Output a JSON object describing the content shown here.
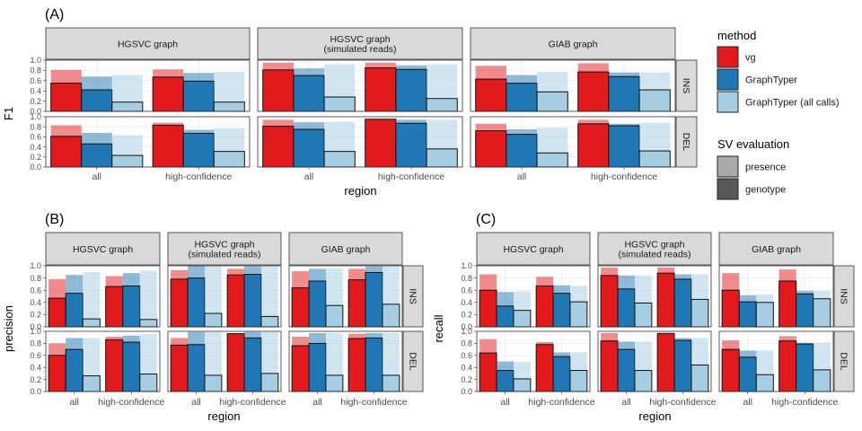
{
  "chart_data": [
    {
      "panel_label": "(A)",
      "type": "bar",
      "ylabel": "F1",
      "xlabel": "region",
      "ylim": [
        0,
        1
      ],
      "y_ticks": [
        "0.0",
        "0.2",
        "0.4",
        "0.6",
        "0.8",
        "1.0"
      ],
      "columns": [
        "HGSVC graph",
        "HGSVC graph\n(simulated reads)",
        "GIAB graph"
      ],
      "rows": [
        "INS",
        "DEL"
      ],
      "categories": [
        "all",
        "high-confidence"
      ],
      "series_names": [
        "vg",
        "GraphTyper",
        "GraphTyper (all calls)"
      ],
      "data": [
        [
          [
            [
              0.55,
              0.81
            ],
            [
              0.42,
              0.68
            ],
            [
              0.18,
              0.71
            ],
            [
              0.67,
              0.82
            ],
            [
              0.59,
              0.75
            ],
            [
              0.18,
              0.77
            ]
          ],
          [
            [
              0.81,
              0.95
            ],
            [
              0.7,
              0.84
            ],
            [
              0.28,
              0.92
            ],
            [
              0.85,
              0.95
            ],
            [
              0.82,
              0.9
            ],
            [
              0.25,
              0.92
            ]
          ],
          [
            [
              0.63,
              0.89
            ],
            [
              0.55,
              0.71
            ],
            [
              0.38,
              0.77
            ],
            [
              0.77,
              0.94
            ],
            [
              0.68,
              0.76
            ],
            [
              0.42,
              0.76
            ]
          ]
        ],
        [
          [
            [
              0.61,
              0.83
            ],
            [
              0.46,
              0.68
            ],
            [
              0.23,
              0.63
            ],
            [
              0.83,
              0.88
            ],
            [
              0.67,
              0.74
            ],
            [
              0.31,
              0.77
            ]
          ],
          [
            [
              0.81,
              0.94
            ],
            [
              0.75,
              0.89
            ],
            [
              0.31,
              0.9
            ],
            [
              0.95,
              0.96
            ],
            [
              0.87,
              0.94
            ],
            [
              0.36,
              0.94
            ]
          ],
          [
            [
              0.72,
              0.86
            ],
            [
              0.65,
              0.75
            ],
            [
              0.28,
              0.78
            ],
            [
              0.86,
              0.94
            ],
            [
              0.82,
              0.86
            ],
            [
              0.32,
              0.88
            ]
          ]
        ]
      ]
    },
    {
      "panel_label": "(B)",
      "type": "bar",
      "ylabel": "precision",
      "xlabel": "region",
      "ylim": [
        0,
        1
      ],
      "y_ticks": [
        "0.0",
        "0.2",
        "0.4",
        "0.6",
        "0.8",
        "1.0"
      ],
      "columns": [
        "HGSVC graph",
        "HGSVC graph\n(simulated reads)",
        "GIAB graph"
      ],
      "rows": [
        "INS",
        "DEL"
      ],
      "categories": [
        "all",
        "high-confidence"
      ],
      "series_names": [
        "vg",
        "GraphTyper",
        "GraphTyper (all calls)"
      ],
      "data": [
        [
          [
            [
              0.47,
              0.78
            ],
            [
              0.55,
              0.85
            ],
            [
              0.13,
              0.9
            ],
            [
              0.66,
              0.83
            ],
            [
              0.67,
              0.88
            ],
            [
              0.12,
              0.92
            ]
          ],
          [
            [
              0.78,
              0.93
            ],
            [
              0.8,
              1.0
            ],
            [
              0.22,
              1.0
            ],
            [
              0.85,
              0.95
            ],
            [
              0.86,
              0.99
            ],
            [
              0.17,
              0.99
            ]
          ],
          [
            [
              0.64,
              0.91
            ],
            [
              0.75,
              0.95
            ],
            [
              0.35,
              0.96
            ],
            [
              0.77,
              0.95
            ],
            [
              0.89,
              0.99
            ],
            [
              0.37,
              0.99
            ]
          ]
        ],
        [
          [
            [
              0.6,
              0.8
            ],
            [
              0.7,
              0.89
            ],
            [
              0.26,
              0.89
            ],
            [
              0.86,
              0.91
            ],
            [
              0.82,
              0.93
            ],
            [
              0.29,
              0.95
            ]
          ],
          [
            [
              0.77,
              0.89
            ],
            [
              0.78,
              0.99
            ],
            [
              0.27,
              0.99
            ],
            [
              0.96,
              0.97
            ],
            [
              0.89,
              0.99
            ],
            [
              0.3,
              0.99
            ]
          ],
          [
            [
              0.76,
              0.91
            ],
            [
              0.8,
              0.97
            ],
            [
              0.27,
              0.97
            ],
            [
              0.88,
              0.96
            ],
            [
              0.89,
              0.97
            ],
            [
              0.27,
              0.97
            ]
          ]
        ]
      ]
    },
    {
      "panel_label": "(C)",
      "type": "bar",
      "ylabel": "recall",
      "xlabel": "region",
      "ylim": [
        0,
        1
      ],
      "y_ticks": [
        "0.0",
        "0.2",
        "0.4",
        "0.6",
        "0.8",
        "1.0"
      ],
      "columns": [
        "HGSVC graph",
        "HGSVC graph\n(simulated reads)",
        "GIAB graph"
      ],
      "rows": [
        "INS",
        "DEL"
      ],
      "categories": [
        "all",
        "high-confidence"
      ],
      "series_names": [
        "vg",
        "GraphTyper",
        "GraphTyper (all calls)"
      ],
      "data": [
        [
          [
            [
              0.6,
              0.86
            ],
            [
              0.34,
              0.57
            ],
            [
              0.27,
              0.58
            ],
            [
              0.67,
              0.82
            ],
            [
              0.55,
              0.68
            ],
            [
              0.41,
              0.67
            ]
          ],
          [
            [
              0.84,
              0.97
            ],
            [
              0.62,
              0.84
            ],
            [
              0.39,
              0.84
            ],
            [
              0.88,
              0.97
            ],
            [
              0.78,
              0.86
            ],
            [
              0.45,
              0.86
            ]
          ],
          [
            [
              0.6,
              0.88
            ],
            [
              0.41,
              0.52
            ],
            [
              0.4,
              0.53
            ],
            [
              0.75,
              0.94
            ],
            [
              0.54,
              0.59
            ],
            [
              0.46,
              0.59
            ]
          ]
        ],
        [
          [
            [
              0.64,
              0.87
            ],
            [
              0.35,
              0.5
            ],
            [
              0.21,
              0.49
            ],
            [
              0.78,
              0.82
            ],
            [
              0.58,
              0.65
            ],
            [
              0.35,
              0.65
            ]
          ],
          [
            [
              0.84,
              0.97
            ],
            [
              0.7,
              0.83
            ],
            [
              0.35,
              0.83
            ],
            [
              0.96,
              0.98
            ],
            [
              0.85,
              0.89
            ],
            [
              0.44,
              0.89
            ]
          ],
          [
            [
              0.7,
              0.85
            ],
            [
              0.57,
              0.68
            ],
            [
              0.28,
              0.68
            ],
            [
              0.84,
              0.92
            ],
            [
              0.79,
              0.81
            ],
            [
              0.36,
              0.81
            ]
          ]
        ]
      ]
    }
  ],
  "legend": {
    "method_title": "method",
    "methods": [
      {
        "label": "vg",
        "color": "#E31A1C"
      },
      {
        "label": "GraphTyper",
        "color": "#1F78B4"
      },
      {
        "label": "GraphTyper (all calls)",
        "color": "#A6CEE3"
      }
    ],
    "eval_title": "SV evaluation",
    "evals": [
      {
        "label": "presence",
        "color": "#A9A9A9"
      },
      {
        "label": "genotype",
        "color": "#595959"
      }
    ]
  },
  "colors": {
    "strip_bg": "#D9D9D9",
    "strip_border": "#333333",
    "grid_major": "#EBEBEB",
    "grid_minor": "#F5F5F5",
    "presence_alpha": 0.5
  }
}
